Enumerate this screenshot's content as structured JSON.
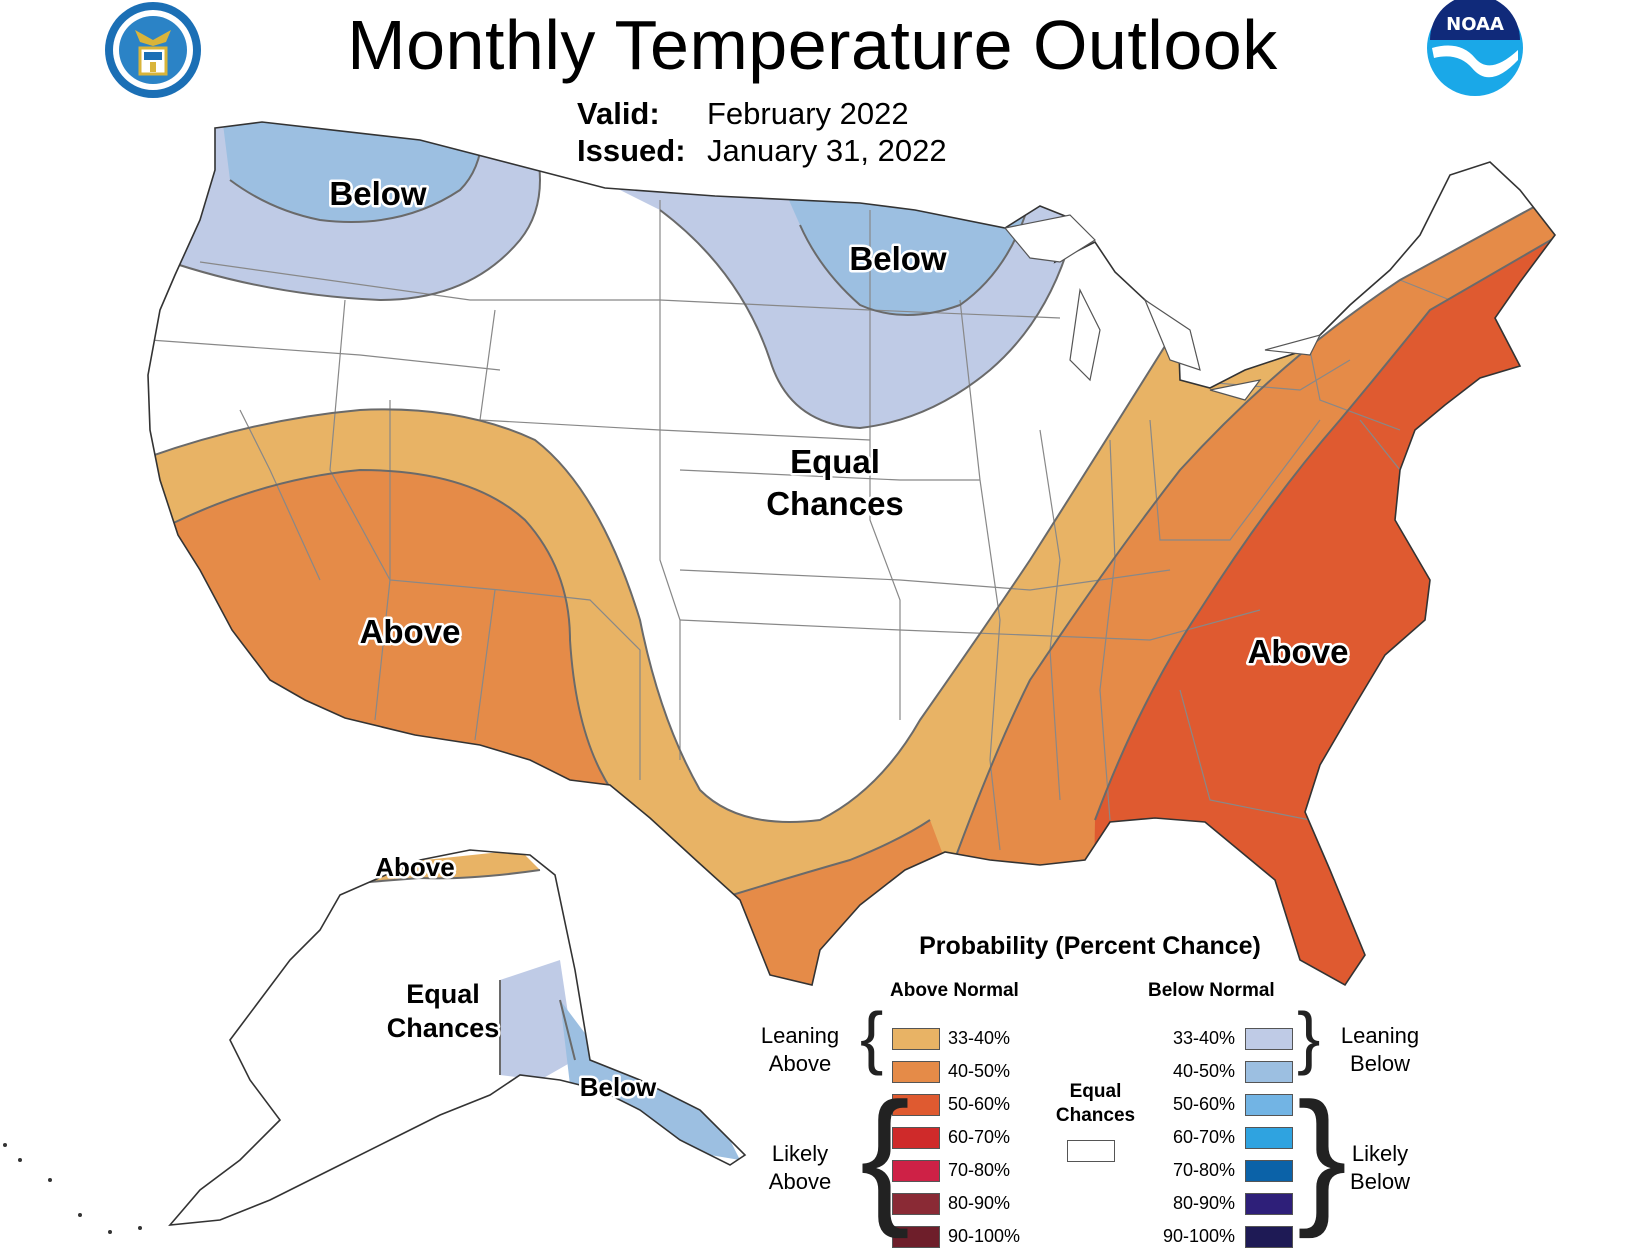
{
  "header": {
    "title": "Monthly Temperature Outlook",
    "valid_label": "Valid:",
    "valid_value": "February 2022",
    "issued_label": "Issued:",
    "issued_value": "January 31, 2022"
  },
  "logos": {
    "left": "department-of-commerce-seal",
    "right": "noaa-logo"
  },
  "map": {
    "regions": [
      {
        "label": "Below",
        "category": "below-40-50"
      },
      {
        "label": "Below",
        "category": "below-40-50"
      },
      {
        "label": "Equal Chances",
        "label_lines": [
          "Equal",
          "Chances"
        ],
        "category": "equal-chances"
      },
      {
        "label": "Above",
        "category": "above-40-50"
      },
      {
        "label": "Above",
        "category": "above-50-60"
      },
      {
        "label": "Above",
        "category": "above-33-40"
      },
      {
        "label": "Equal Chances",
        "label_lines": [
          "Equal",
          "Chances"
        ],
        "category": "equal-chances"
      },
      {
        "label": "Below",
        "category": "below-40-50"
      }
    ]
  },
  "colors": {
    "above_33_40": "#E8B365",
    "above_40_50": "#E58B48",
    "above_50_60": "#DF5A30",
    "above_60_70": "#CF2A2A",
    "above_70_80": "#CE2146",
    "above_80_90": "#8A2A35",
    "above_90_100": "#6E1E2A",
    "below_33_40": "#BFCBE6",
    "below_40_50": "#9CBFE1",
    "below_50_60": "#72B4E4",
    "below_60_70": "#2FA3E0",
    "below_70_80": "#0B62A8",
    "below_80_90": "#2E1F79",
    "below_90_100": "#1E1A55",
    "equal": "#FFFFFF",
    "state_lines": "#888888",
    "contour_lines": "#6A6A6A"
  },
  "legend": {
    "title": "Probability (Percent Chance)",
    "above_header": "Above Normal",
    "below_header": "Below Normal",
    "above_items": [
      {
        "label": "33-40%",
        "color": "#E8B365"
      },
      {
        "label": "40-50%",
        "color": "#E58B48"
      },
      {
        "label": "50-60%",
        "color": "#DF5A30"
      },
      {
        "label": "60-70%",
        "color": "#CF2A2A"
      },
      {
        "label": "70-80%",
        "color": "#CE2146"
      },
      {
        "label": "80-90%",
        "color": "#8A2A35"
      },
      {
        "label": "90-100%",
        "color": "#6E1E2A"
      }
    ],
    "below_items": [
      {
        "label": "33-40%",
        "color": "#BFCBE6"
      },
      {
        "label": "40-50%",
        "color": "#9CBFE1"
      },
      {
        "label": "50-60%",
        "color": "#72B4E4"
      },
      {
        "label": "60-70%",
        "color": "#2FA3E0"
      },
      {
        "label": "70-80%",
        "color": "#0B62A8"
      },
      {
        "label": "80-90%",
        "color": "#2E1F79"
      },
      {
        "label": "90-100%",
        "color": "#1E1A55"
      }
    ],
    "leaning_above": [
      "Leaning",
      "Above"
    ],
    "likely_above": [
      "Likely",
      "Above"
    ],
    "leaning_below": [
      "Leaning",
      "Below"
    ],
    "likely_below": [
      "Likely",
      "Below"
    ],
    "equal_chances": [
      "Equal",
      "Chances"
    ]
  }
}
